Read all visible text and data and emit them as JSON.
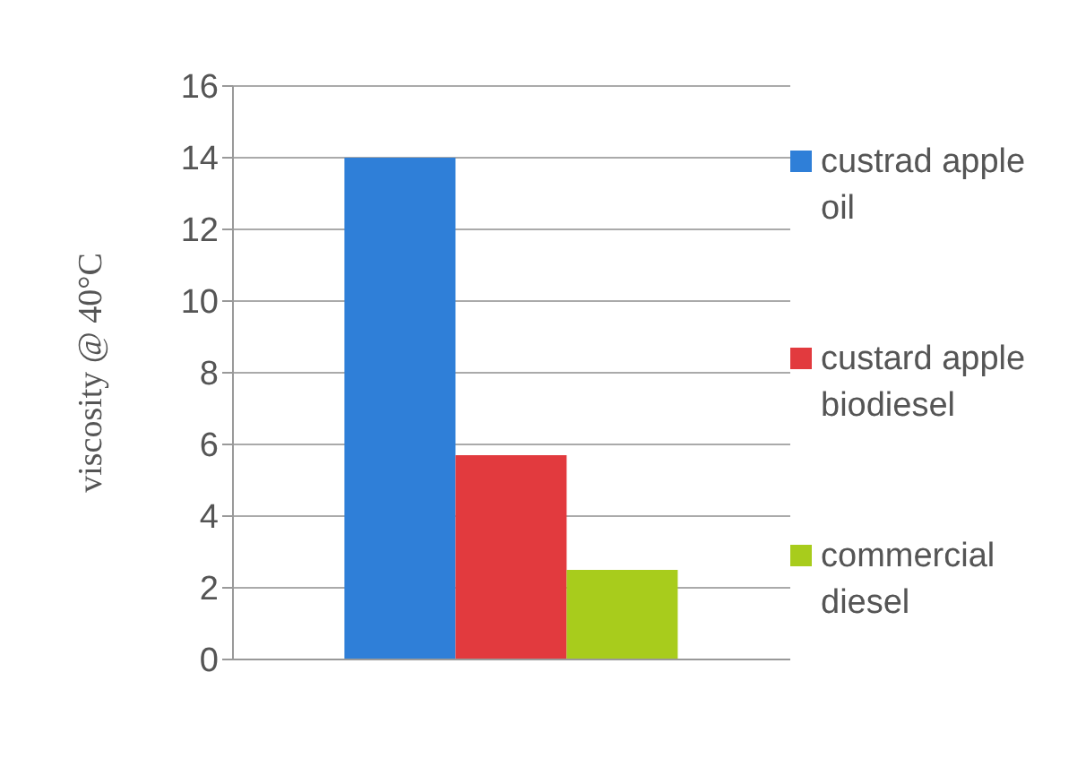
{
  "chart_data": {
    "type": "bar",
    "ylabel": "viscosity @ 40°C",
    "categories": [
      null
    ],
    "series": [
      {
        "name": "custrad apple oil",
        "color": "#2f7fd8",
        "values": [
          14
        ]
      },
      {
        "name": "custard apple biodiesel",
        "color": "#e23a3e",
        "values": [
          5.7
        ]
      },
      {
        "name": "commercial diesel",
        "color": "#a8cc1c",
        "values": [
          2.5
        ]
      }
    ],
    "ylim": [
      0,
      16
    ],
    "yticks": [
      0,
      2,
      4,
      6,
      8,
      10,
      12,
      14,
      16
    ],
    "grid": "y",
    "legend": "right"
  }
}
